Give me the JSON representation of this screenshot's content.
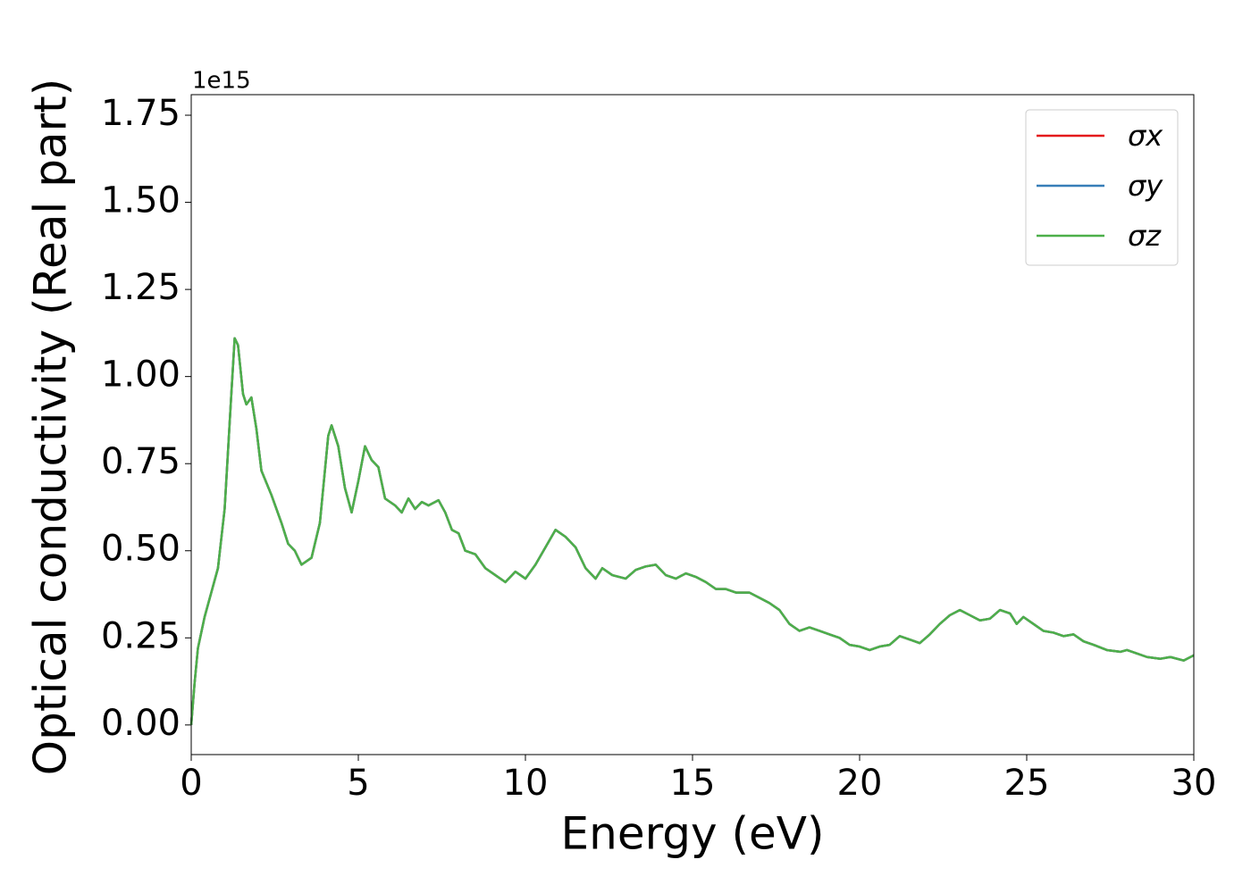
{
  "chart_data": {
    "type": "line",
    "y_label": "Optical conductivity (Real part)",
    "x_label": "Energy (eV)",
    "y_offset_label": "1e15",
    "x": [
      0,
      0.1,
      0.2,
      0.4,
      0.6,
      0.8,
      1.0,
      1.2,
      1.3,
      1.4,
      1.55,
      1.65,
      1.8,
      1.95,
      2.1,
      2.4,
      2.7,
      2.9,
      3.1,
      3.3,
      3.6,
      3.85,
      4.1,
      4.2,
      4.4,
      4.6,
      4.8,
      5.0,
      5.2,
      5.4,
      5.6,
      5.8,
      6.1,
      6.3,
      6.5,
      6.7,
      6.9,
      7.1,
      7.4,
      7.6,
      7.8,
      8.0,
      8.2,
      8.5,
      8.8,
      9.1,
      9.4,
      9.7,
      10.0,
      10.3,
      10.6,
      10.9,
      11.2,
      11.5,
      11.8,
      12.1,
      12.3,
      12.6,
      13.0,
      13.3,
      13.6,
      13.9,
      14.2,
      14.5,
      14.8,
      15.1,
      15.4,
      15.7,
      16.0,
      16.3,
      16.7,
      17.0,
      17.3,
      17.6,
      17.9,
      18.2,
      18.5,
      18.8,
      19.1,
      19.4,
      19.7,
      20.0,
      20.3,
      20.6,
      20.9,
      21.2,
      21.5,
      21.8,
      22.1,
      22.4,
      22.7,
      23.0,
      23.3,
      23.6,
      23.9,
      24.2,
      24.5,
      24.7,
      24.9,
      25.2,
      25.5,
      25.8,
      26.1,
      26.4,
      26.7,
      27.0,
      27.4,
      27.8,
      28.0,
      28.3,
      28.6,
      29.0,
      29.3,
      29.7,
      30.0
    ],
    "series": [
      {
        "name": "σx",
        "color": "#e41a1c",
        "values": [
          0,
          0.12,
          0.22,
          0.31,
          0.38,
          0.45,
          0.62,
          0.95,
          1.11,
          1.09,
          0.95,
          0.92,
          0.94,
          0.85,
          0.73,
          0.66,
          0.58,
          0.52,
          0.5,
          0.46,
          0.48,
          0.58,
          0.83,
          0.86,
          0.8,
          0.68,
          0.61,
          0.7,
          0.8,
          0.76,
          0.74,
          0.65,
          0.63,
          0.61,
          0.65,
          0.62,
          0.64,
          0.63,
          0.645,
          0.61,
          0.56,
          0.55,
          0.5,
          0.49,
          0.45,
          0.43,
          0.41,
          0.44,
          0.42,
          0.46,
          0.51,
          0.56,
          0.54,
          0.51,
          0.45,
          0.42,
          0.45,
          0.43,
          0.42,
          0.445,
          0.455,
          0.46,
          0.43,
          0.42,
          0.435,
          0.425,
          0.41,
          0.39,
          0.39,
          0.38,
          0.38,
          0.365,
          0.35,
          0.33,
          0.29,
          0.27,
          0.28,
          0.27,
          0.26,
          0.25,
          0.23,
          0.225,
          0.215,
          0.225,
          0.23,
          0.255,
          0.245,
          0.235,
          0.26,
          0.29,
          0.315,
          0.33,
          0.315,
          0.3,
          0.305,
          0.33,
          0.32,
          0.29,
          0.31,
          0.29,
          0.27,
          0.265,
          0.255,
          0.26,
          0.24,
          0.23,
          0.215,
          0.21,
          0.215,
          0.205,
          0.195,
          0.19,
          0.195,
          0.185,
          0.2
        ]
      },
      {
        "name": "σy",
        "color": "#377eb8",
        "values": [
          0,
          0.12,
          0.22,
          0.31,
          0.38,
          0.45,
          0.62,
          0.95,
          1.11,
          1.09,
          0.95,
          0.92,
          0.94,
          0.85,
          0.73,
          0.66,
          0.58,
          0.52,
          0.5,
          0.46,
          0.48,
          0.58,
          0.83,
          0.86,
          0.8,
          0.68,
          0.61,
          0.7,
          0.8,
          0.76,
          0.74,
          0.65,
          0.63,
          0.61,
          0.65,
          0.62,
          0.64,
          0.63,
          0.645,
          0.61,
          0.56,
          0.55,
          0.5,
          0.49,
          0.45,
          0.43,
          0.41,
          0.44,
          0.42,
          0.46,
          0.51,
          0.56,
          0.54,
          0.51,
          0.45,
          0.42,
          0.45,
          0.43,
          0.42,
          0.445,
          0.455,
          0.46,
          0.43,
          0.42,
          0.435,
          0.425,
          0.41,
          0.39,
          0.39,
          0.38,
          0.38,
          0.365,
          0.35,
          0.33,
          0.29,
          0.27,
          0.28,
          0.27,
          0.26,
          0.25,
          0.23,
          0.225,
          0.215,
          0.225,
          0.23,
          0.255,
          0.245,
          0.235,
          0.26,
          0.29,
          0.315,
          0.33,
          0.315,
          0.3,
          0.305,
          0.33,
          0.32,
          0.29,
          0.31,
          0.29,
          0.27,
          0.265,
          0.255,
          0.26,
          0.24,
          0.23,
          0.215,
          0.21,
          0.215,
          0.205,
          0.195,
          0.19,
          0.195,
          0.185,
          0.2
        ]
      },
      {
        "name": "σz",
        "color": "#4daf4a",
        "values": [
          0,
          0.12,
          0.22,
          0.31,
          0.38,
          0.45,
          0.62,
          0.95,
          1.11,
          1.09,
          0.95,
          0.92,
          0.94,
          0.85,
          0.73,
          0.66,
          0.58,
          0.52,
          0.5,
          0.46,
          0.48,
          0.58,
          0.83,
          0.86,
          0.8,
          0.68,
          0.61,
          0.7,
          0.8,
          0.76,
          0.74,
          0.65,
          0.63,
          0.61,
          0.65,
          0.62,
          0.64,
          0.63,
          0.645,
          0.61,
          0.56,
          0.55,
          0.5,
          0.49,
          0.45,
          0.43,
          0.41,
          0.44,
          0.42,
          0.46,
          0.51,
          0.56,
          0.54,
          0.51,
          0.45,
          0.42,
          0.45,
          0.43,
          0.42,
          0.445,
          0.455,
          0.46,
          0.43,
          0.42,
          0.435,
          0.425,
          0.41,
          0.39,
          0.39,
          0.38,
          0.38,
          0.365,
          0.35,
          0.33,
          0.29,
          0.27,
          0.28,
          0.27,
          0.26,
          0.25,
          0.23,
          0.225,
          0.215,
          0.225,
          0.23,
          0.255,
          0.245,
          0.235,
          0.26,
          0.29,
          0.315,
          0.33,
          0.315,
          0.3,
          0.305,
          0.33,
          0.32,
          0.29,
          0.31,
          0.29,
          0.27,
          0.265,
          0.255,
          0.26,
          0.24,
          0.23,
          0.215,
          0.21,
          0.215,
          0.205,
          0.195,
          0.19,
          0.195,
          0.185,
          0.2
        ]
      }
    ],
    "xlim": [
      0,
      30
    ],
    "xticks": [
      0,
      5,
      10,
      15,
      20,
      25,
      30
    ],
    "ylim": [
      -0.085,
      1.809
    ],
    "yticks": [
      {
        "value": 0,
        "label": "0.00"
      },
      {
        "value": 0.25,
        "label": "0.25"
      },
      {
        "value": 0.5,
        "label": "0.50"
      },
      {
        "value": 0.75,
        "label": "0.75"
      },
      {
        "value": 1.0,
        "label": "1.00"
      },
      {
        "value": 1.25,
        "label": "1.25"
      },
      {
        "value": 1.5,
        "label": "1.50"
      },
      {
        "value": 1.75,
        "label": "1.75"
      }
    ],
    "legend": "upper right",
    "grid": false
  }
}
